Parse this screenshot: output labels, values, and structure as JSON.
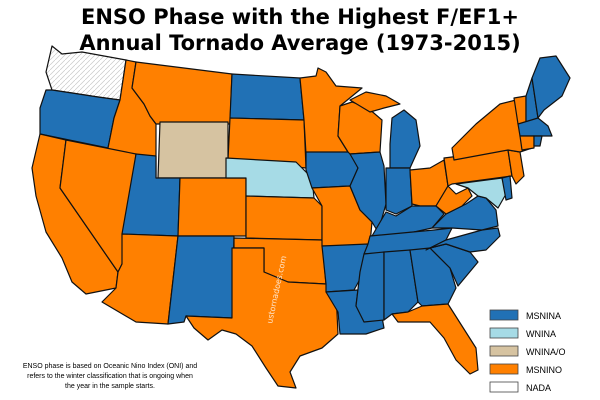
{
  "title": {
    "line1": "ENSO Phase with the Highest F/EF1+",
    "line2": "Annual Tornado Average (1973-2015)"
  },
  "legend": [
    {
      "key": "MSNINA",
      "label": "MSNINA",
      "color": "#2171b5"
    },
    {
      "key": "WNINA",
      "label": "WNINA",
      "color": "#a6dbe6"
    },
    {
      "key": "WNINA_O",
      "label": "WNINA/O",
      "color": "#d6c3a1"
    },
    {
      "key": "MSNINO",
      "label": "MSNINO",
      "color": "#ff8000"
    },
    {
      "key": "NADA",
      "label": "NADA",
      "color": "#ffffff"
    }
  ],
  "footnote": [
    "ENSO phase is based on Oceanic Nino Index (ONI) and",
    "refers to the winter classification that is ongoing when",
    "the year in the sample starts."
  ],
  "watermark": "ustornadoes.com",
  "states": [
    {
      "name": "WA",
      "phase": "NADA"
    },
    {
      "name": "OR",
      "phase": "MSNINA"
    },
    {
      "name": "CA",
      "phase": "MSNINO"
    },
    {
      "name": "NV",
      "phase": "MSNINO"
    },
    {
      "name": "ID",
      "phase": "MSNINO"
    },
    {
      "name": "MT",
      "phase": "MSNINO"
    },
    {
      "name": "WY",
      "phase": "WNINA_O"
    },
    {
      "name": "UT",
      "phase": "MSNINA"
    },
    {
      "name": "AZ",
      "phase": "MSNINO"
    },
    {
      "name": "CO",
      "phase": "MSNINO"
    },
    {
      "name": "NM",
      "phase": "MSNINA"
    },
    {
      "name": "ND",
      "phase": "MSNINA"
    },
    {
      "name": "SD",
      "phase": "MSNINO"
    },
    {
      "name": "NE",
      "phase": "WNINA"
    },
    {
      "name": "KS",
      "phase": "MSNINO"
    },
    {
      "name": "OK",
      "phase": "MSNINO"
    },
    {
      "name": "TX",
      "phase": "MSNINO"
    },
    {
      "name": "MN",
      "phase": "MSNINO"
    },
    {
      "name": "IA",
      "phase": "MSNINA"
    },
    {
      "name": "MO",
      "phase": "MSNINO"
    },
    {
      "name": "AR",
      "phase": "MSNINA"
    },
    {
      "name": "LA",
      "phase": "MSNINA"
    },
    {
      "name": "WI",
      "phase": "MSNINO"
    },
    {
      "name": "IL",
      "phase": "MSNINA"
    },
    {
      "name": "MI-UP",
      "phase": "MSNINO"
    },
    {
      "name": "MI",
      "phase": "MSNINA"
    },
    {
      "name": "IN",
      "phase": "MSNINA"
    },
    {
      "name": "OH",
      "phase": "MSNINO"
    },
    {
      "name": "KY",
      "phase": "MSNINA"
    },
    {
      "name": "TN",
      "phase": "MSNINA"
    },
    {
      "name": "MS",
      "phase": "MSNINA"
    },
    {
      "name": "AL",
      "phase": "MSNINA"
    },
    {
      "name": "GA",
      "phase": "MSNINA"
    },
    {
      "name": "FL",
      "phase": "MSNINO"
    },
    {
      "name": "SC",
      "phase": "MSNINA"
    },
    {
      "name": "NC",
      "phase": "MSNINA"
    },
    {
      "name": "VA",
      "phase": "MSNINA"
    },
    {
      "name": "WV",
      "phase": "MSNINO"
    },
    {
      "name": "PA",
      "phase": "MSNINO"
    },
    {
      "name": "MD",
      "phase": "WNINA"
    },
    {
      "name": "DE",
      "phase": "MSNINA"
    },
    {
      "name": "NJ",
      "phase": "MSNINO"
    },
    {
      "name": "NY",
      "phase": "MSNINO"
    },
    {
      "name": "CT",
      "phase": "MSNINO"
    },
    {
      "name": "RI",
      "phase": "MSNINA"
    },
    {
      "name": "MA",
      "phase": "MSNINA"
    },
    {
      "name": "VT",
      "phase": "MSNINO"
    },
    {
      "name": "NH",
      "phase": "MSNINA"
    },
    {
      "name": "ME",
      "phase": "MSNINA"
    }
  ]
}
